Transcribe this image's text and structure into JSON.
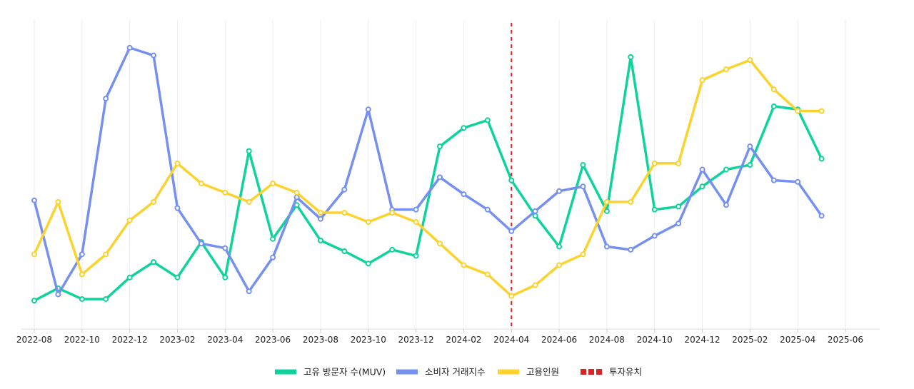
{
  "chart_data": {
    "type": "line",
    "x_ticks": [
      "2022-08",
      "2022-10",
      "2022-12",
      "2023-02",
      "2023-04",
      "2023-06",
      "2023-08",
      "2023-10",
      "2023-12",
      "2024-02",
      "2024-04",
      "2024-06",
      "2024-08",
      "2024-10",
      "2024-12",
      "2025-02",
      "2025-04",
      "2025-06"
    ],
    "x": [
      "2022-08",
      "2022-09",
      "2022-10",
      "2022-11",
      "2022-12",
      "2023-01",
      "2023-02",
      "2023-03",
      "2023-04",
      "2023-05",
      "2023-06",
      "2023-07",
      "2023-08",
      "2023-09",
      "2023-10",
      "2023-11",
      "2023-12",
      "2024-01",
      "2024-02",
      "2024-03",
      "2024-04",
      "2024-05",
      "2024-06",
      "2024-07",
      "2024-08",
      "2024-09",
      "2024-10",
      "2024-11",
      "2024-12",
      "2025-01",
      "2025-02",
      "2025-03",
      "2025-04",
      "2025-05"
    ],
    "xlim": [
      "2022-08",
      "2025-06"
    ],
    "ylim": [
      0,
      100
    ],
    "grid": "vertical",
    "legend_position": "bottom",
    "series": [
      {
        "name": "고유 방문자 수(MUV)",
        "color": "#0fd39c",
        "values": [
          9,
          13,
          9.5,
          9.5,
          16.5,
          21.5,
          16.5,
          28,
          16.5,
          57.5,
          29,
          40,
          28.5,
          25,
          21,
          25.5,
          23.5,
          59,
          65,
          67.5,
          48,
          36.5,
          26.5,
          53,
          38,
          88,
          38.5,
          39.5,
          46,
          51.5,
          53,
          72,
          71,
          55
        ]
      },
      {
        "name": "소비자 거래지수",
        "color": "#7590f0",
        "values": [
          41.5,
          11,
          24,
          74.5,
          91,
          88.5,
          39,
          27.5,
          26,
          12,
          23,
          42.5,
          35.5,
          45,
          71,
          38.5,
          38.5,
          49,
          43.5,
          38.5,
          31.5,
          38,
          44.5,
          46,
          26.5,
          25.5,
          30,
          34,
          51.5,
          40,
          59,
          48,
          47.5,
          36.5
        ]
      },
      {
        "name": "고용인원",
        "color": "#fcd32e",
        "values": [
          24,
          41,
          17.5,
          24,
          35,
          41,
          53.5,
          47,
          44,
          41,
          47,
          44,
          37.5,
          37.5,
          34.5,
          37.5,
          34.5,
          27.5,
          20.5,
          17.5,
          10.5,
          14,
          20.5,
          24,
          41,
          41,
          53.5,
          53.5,
          80.5,
          84,
          87,
          77.5,
          70.5,
          70.5
        ]
      }
    ],
    "annotations": [
      {
        "name": "투자유치",
        "x": "2024-04",
        "style": "dashed",
        "color": "#d62728"
      }
    ]
  }
}
